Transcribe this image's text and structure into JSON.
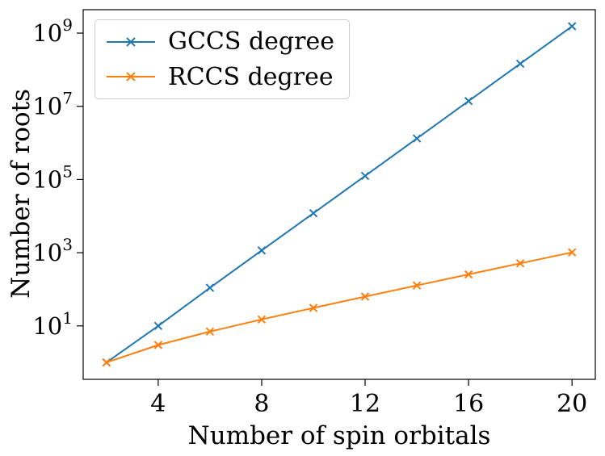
{
  "chart_data": {
    "type": "line",
    "title": "",
    "xlabel": "Number of spin orbitals",
    "ylabel": "Number of roots",
    "y_scale": "log",
    "grid": false,
    "legend_position": "upper left",
    "x": [
      2,
      4,
      6,
      8,
      10,
      12,
      14,
      16,
      18,
      20
    ],
    "series": [
      {
        "name": "GCCS degree",
        "color": "#1f77b4",
        "marker": "x",
        "values": [
          1,
          10,
          110,
          1150,
          12000,
          126000,
          1320000,
          13900000,
          146000000,
          1530000000
        ]
      },
      {
        "name": "RCCS degree",
        "color": "#ff7f0e",
        "marker": "x",
        "values": [
          1,
          3,
          7,
          15,
          31,
          63,
          127,
          255,
          511,
          1023
        ]
      }
    ],
    "x_ticks": [
      4,
      8,
      12,
      16,
      20
    ],
    "y_ticks": [
      {
        "base": "10",
        "exponent": "1"
      },
      {
        "base": "10",
        "exponent": "3"
      },
      {
        "base": "10",
        "exponent": "5"
      },
      {
        "base": "10",
        "exponent": "7"
      },
      {
        "base": "10",
        "exponent": "9"
      }
    ],
    "y_tick_exponents": [
      1,
      3,
      5,
      7,
      9
    ],
    "xlim": [
      1.1,
      20.9
    ],
    "ylim_log10": [
      -0.46,
      9.64
    ]
  }
}
